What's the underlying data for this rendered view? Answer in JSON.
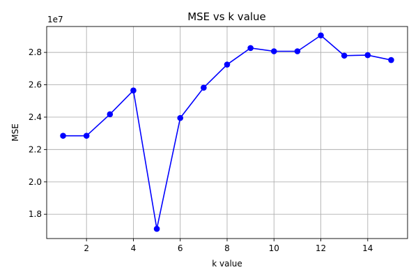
{
  "chart_data": {
    "type": "line",
    "title": "MSE vs k value",
    "xlabel": "k value",
    "ylabel": "MSE",
    "y_offset_label": "1e7",
    "x": [
      1,
      2,
      3,
      4,
      5,
      6,
      7,
      8,
      9,
      10,
      11,
      12,
      13,
      14,
      15
    ],
    "series": [
      {
        "values": [
          22850000,
          22850000,
          24180000,
          25650000,
          17100000,
          23950000,
          25820000,
          27250000,
          28270000,
          28070000,
          28070000,
          29050000,
          27800000,
          27830000,
          27530000
        ],
        "color": "#0000ff",
        "marker": "circle"
      }
    ],
    "xlim": [
      0.3,
      15.7
    ],
    "ylim": [
      16500000,
      29600000
    ],
    "x_ticks": [
      2,
      4,
      6,
      8,
      10,
      12,
      14
    ],
    "y_ticks": [
      1.8,
      2.0,
      2.2,
      2.4,
      2.6,
      2.8
    ],
    "y_tick_scale": 10000000,
    "grid": true
  }
}
